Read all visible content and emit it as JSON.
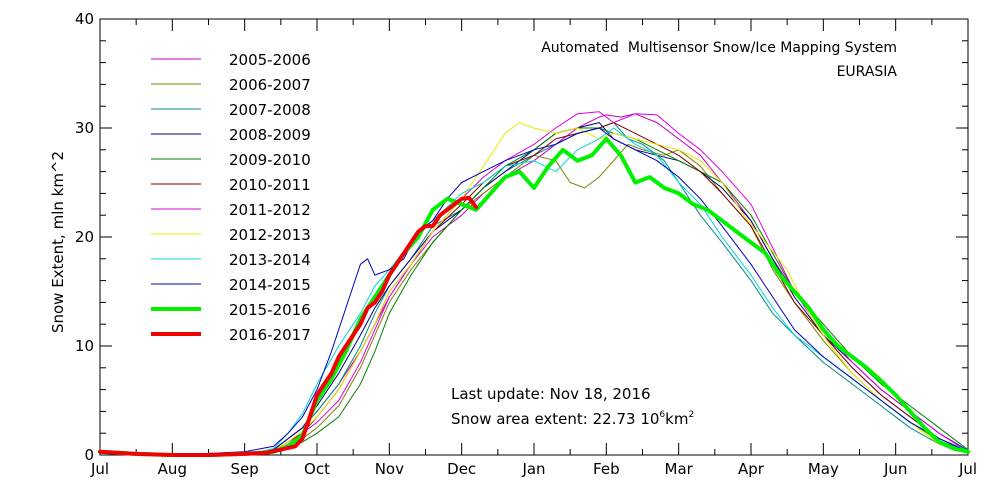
{
  "chart_data": {
    "type": "line",
    "title": "Automated  Multisensor Snow/Ice Mapping System",
    "subtitle": "EURASIA",
    "ylabel": "Snow Extent, mln km^2",
    "xlabel": "",
    "ylim": [
      0,
      40
    ],
    "xlim": [
      0,
      12
    ],
    "y_ticks": [
      "0",
      "10",
      "20",
      "30",
      "40"
    ],
    "x_ticks": [
      "Jul",
      "Aug",
      "Sep",
      "Oct",
      "Nov",
      "Dec",
      "Jan",
      "Feb",
      "Mar",
      "Apr",
      "May",
      "Jun",
      "Jul"
    ],
    "x_unit": "months since Jul 1",
    "grid": false,
    "legend_position": "top-left",
    "annotations": {
      "last_update": "Last update: Nov 18, 2016",
      "snow_area": "Snow area extent: 22.73 10",
      "snow_area_sup": "6",
      "snow_area_unit": "km",
      "snow_area_unit_sup": "2"
    },
    "series": [
      {
        "name": "2005-2006",
        "color": "#c000c0",
        "width": 1,
        "x": [
          0,
          1,
          2,
          2.4,
          2.6,
          2.8,
          3,
          3.3,
          3.6,
          3.8,
          4,
          4.3,
          4.6,
          5,
          5.3,
          5.6,
          6,
          6.3,
          6.6,
          6.9,
          7,
          7.2,
          7.4,
          7.7,
          8,
          8.3,
          8.6,
          9,
          9.3,
          9.6,
          10,
          10.4,
          10.8,
          11.2,
          11.6,
          12
        ],
        "y": [
          0.3,
          0,
          0,
          0.5,
          1.5,
          2.5,
          4,
          6.5,
          9.5,
          12,
          14.5,
          17.5,
          20,
          22,
          24,
          25.5,
          27,
          28.5,
          30,
          31,
          31.2,
          31,
          31.3,
          30.5,
          29,
          27.5,
          25,
          21.5,
          18,
          15,
          11,
          8,
          5.5,
          3.5,
          1.5,
          0.4
        ]
      },
      {
        "name": "2006-2007",
        "color": "#808000",
        "width": 1,
        "x": [
          0,
          1,
          2,
          2.4,
          2.6,
          2.8,
          3,
          3.3,
          3.6,
          3.8,
          4,
          4.3,
          4.6,
          5,
          5.3,
          5.6,
          6,
          6.3,
          6.5,
          6.7,
          6.9,
          7.1,
          7.3,
          7.5,
          7.8,
          8,
          8.3,
          8.6,
          9,
          9.3,
          9.6,
          10,
          10.4,
          10.8,
          11.2,
          11.6,
          12
        ],
        "y": [
          0.2,
          0,
          0,
          0.2,
          0.8,
          1.5,
          2.5,
          4.5,
          8,
          11,
          14,
          17,
          19.5,
          22.5,
          24,
          25.5,
          27.5,
          27,
          25,
          24.5,
          25.5,
          27,
          28.5,
          28,
          27.5,
          28,
          26.5,
          24,
          21,
          17,
          14,
          10.5,
          7.5,
          5,
          3,
          1.3,
          0.4
        ]
      },
      {
        "name": "2007-2008",
        "color": "#008b8b",
        "width": 1,
        "x": [
          0,
          1,
          2,
          2.4,
          2.6,
          2.8,
          3,
          3.3,
          3.6,
          3.8,
          4,
          4.3,
          4.6,
          5,
          5.3,
          5.6,
          6,
          6.3,
          6.6,
          6.9,
          7.1,
          7.3,
          7.5,
          7.8,
          8,
          8.3,
          8.6,
          9,
          9.3,
          9.6,
          10,
          10.4,
          10.8,
          11.2,
          11.6,
          12
        ],
        "y": [
          0.2,
          0,
          0,
          0.5,
          1.5,
          2.5,
          4,
          6.5,
          10,
          13,
          15.5,
          18,
          21,
          22.5,
          24.5,
          26,
          27.5,
          28.5,
          29.5,
          30,
          30.5,
          29,
          28.5,
          27,
          25,
          22,
          19.5,
          16,
          13,
          11,
          8.5,
          6.5,
          4.5,
          2.5,
          1,
          0.3
        ]
      },
      {
        "name": "2008-2009",
        "color": "#000080",
        "width": 1,
        "x": [
          0,
          1,
          2,
          2.4,
          2.6,
          2.8,
          3,
          3.3,
          3.6,
          3.8,
          4,
          4.3,
          4.6,
          5,
          5.3,
          5.6,
          6,
          6.3,
          6.6,
          6.9,
          7.1,
          7.4,
          7.7,
          8,
          8.3,
          8.6,
          9,
          9.3,
          9.6,
          10,
          10.4,
          10.8,
          11.2,
          11.6,
          12
        ],
        "y": [
          0.2,
          0,
          0,
          0.5,
          1.5,
          2.5,
          4.5,
          7.5,
          11,
          13.5,
          15.5,
          18,
          20.5,
          22.5,
          24.5,
          26,
          28,
          29.5,
          30,
          30.5,
          29,
          28,
          27.5,
          27,
          26,
          24.5,
          21.5,
          18,
          14.5,
          11,
          8.5,
          6,
          4,
          2,
          0.4
        ]
      },
      {
        "name": "2009-2010",
        "color": "#008000",
        "width": 1,
        "x": [
          0,
          1,
          2,
          2.4,
          2.6,
          2.8,
          3,
          3.3,
          3.6,
          3.8,
          4,
          4.3,
          4.6,
          5,
          5.3,
          5.6,
          6,
          6.3,
          6.6,
          6.9,
          7.1,
          7.4,
          7.7,
          8,
          8.3,
          8.6,
          9,
          9.3,
          9.6,
          10,
          10.4,
          10.8,
          11.2,
          11.6,
          12
        ],
        "y": [
          0.2,
          0,
          0,
          0.2,
          0.6,
          1.2,
          2,
          3.5,
          6.5,
          9.5,
          13,
          16.5,
          19.5,
          22.5,
          24.5,
          26.5,
          28,
          29.5,
          30,
          30,
          29.5,
          29,
          28,
          27,
          26,
          25,
          22,
          18.5,
          15,
          12,
          9,
          6.5,
          4.5,
          2.5,
          0.5
        ]
      },
      {
        "name": "2010-2011",
        "color": "#800000",
        "width": 1,
        "x": [
          0,
          1,
          2,
          2.4,
          2.6,
          2.8,
          3,
          3.3,
          3.6,
          3.8,
          4,
          4.3,
          4.6,
          5,
          5.3,
          5.6,
          6,
          6.3,
          6.6,
          6.9,
          7.1,
          7.4,
          7.7,
          8,
          8.3,
          8.6,
          9,
          9.3,
          9.6,
          10,
          10.4,
          10.8,
          11.2,
          11.6,
          12
        ],
        "y": [
          0.2,
          0,
          0,
          0.4,
          1.2,
          2,
          3.5,
          6,
          9.5,
          12,
          15,
          17.5,
          20.5,
          23,
          25,
          26.5,
          27.5,
          29,
          29.5,
          30,
          30.5,
          29.5,
          28.5,
          27.5,
          26,
          24,
          21,
          17.5,
          14,
          11,
          8,
          5.5,
          3.5,
          1.5,
          0.4
        ]
      },
      {
        "name": "2011-2012",
        "color": "#e000e0",
        "width": 1,
        "x": [
          0,
          1,
          2,
          2.4,
          2.6,
          2.8,
          3,
          3.3,
          3.6,
          3.8,
          4,
          4.3,
          4.6,
          5,
          5.3,
          5.6,
          6,
          6.3,
          6.6,
          6.9,
          7.1,
          7.4,
          7.7,
          8,
          8.3,
          8.6,
          9,
          9.3,
          9.6,
          10,
          10.4,
          10.8,
          11.2,
          11.6,
          12
        ],
        "y": [
          0.2,
          0,
          0,
          0.3,
          1,
          2,
          3,
          5,
          8.5,
          11.5,
          14.5,
          17.5,
          20.5,
          23.5,
          25.5,
          27,
          28.5,
          30,
          31.3,
          31.5,
          30.5,
          31.3,
          31.2,
          29.5,
          28,
          26,
          23,
          19,
          15,
          11.5,
          8.5,
          6,
          4,
          2,
          0.3
        ]
      },
      {
        "name": "2012-2013",
        "color": "#e8e800",
        "width": 1,
        "x": [
          0,
          1,
          2,
          2.4,
          2.6,
          2.8,
          3,
          3.3,
          3.6,
          3.8,
          4,
          4.3,
          4.6,
          5,
          5.3,
          5.6,
          5.8,
          6,
          6.3,
          6.6,
          6.9,
          7.1,
          7.4,
          7.7,
          8,
          8.3,
          8.6,
          8.9,
          9.2,
          9.5,
          9.8,
          10.1,
          10.4,
          10.8,
          11.2,
          11.6,
          12
        ],
        "y": [
          0.2,
          0,
          0,
          0.4,
          1.2,
          2.2,
          3.5,
          6,
          9.5,
          12,
          15,
          17.5,
          20.5,
          23.5,
          26.5,
          29.5,
          30.5,
          30,
          29.5,
          30,
          29,
          29.5,
          29,
          28.5,
          28,
          27,
          25,
          22,
          19.5,
          17,
          13,
          10,
          7.5,
          5,
          3,
          1,
          0.3
        ]
      },
      {
        "name": "2013-2014",
        "color": "#00d8d8",
        "width": 1,
        "x": [
          0,
          1,
          2,
          2.4,
          2.6,
          2.8,
          3,
          3.3,
          3.6,
          3.8,
          4,
          4.3,
          4.6,
          5,
          5.3,
          5.6,
          6,
          6.3,
          6.6,
          6.9,
          7.1,
          7.4,
          7.7,
          8,
          8.3,
          8.6,
          9,
          9.3,
          9.6,
          10,
          10.4,
          10.8,
          11.2,
          11.6,
          12
        ],
        "y": [
          0.2,
          0,
          0,
          0.6,
          2,
          3.8,
          6.5,
          10,
          13,
          15.5,
          17,
          19.5,
          21.5,
          24,
          25,
          26.5,
          27,
          26,
          28,
          29,
          30,
          28.5,
          27.5,
          25,
          23,
          20,
          16.5,
          13.5,
          11,
          9,
          7,
          5,
          3,
          1.5,
          0.4
        ]
      },
      {
        "name": "2014-2015",
        "color": "#0000c0",
        "width": 1,
        "x": [
          0,
          1,
          2,
          2.4,
          2.6,
          2.8,
          3,
          3.2,
          3.4,
          3.5,
          3.6,
          3.7,
          3.8,
          4,
          4.2,
          4.4,
          4.6,
          4.8,
          5,
          5.3,
          5.6,
          6,
          6.3,
          6.6,
          6.9,
          7.1,
          7.4,
          7.7,
          8,
          8.3,
          8.6,
          9,
          9.3,
          9.6,
          10,
          10.4,
          10.8,
          11.2,
          11.6,
          12
        ],
        "y": [
          0.2,
          0,
          0.3,
          0.8,
          2,
          3.5,
          6,
          9.5,
          13.5,
          15.5,
          17.5,
          18,
          16.5,
          17,
          18,
          20.5,
          21.5,
          23.5,
          25,
          26,
          27,
          28,
          28.5,
          29.5,
          30,
          29,
          28,
          27,
          25.5,
          23.5,
          21,
          17.5,
          14.5,
          11.5,
          9,
          7,
          5,
          3,
          1.5,
          0.3
        ]
      },
      {
        "name": "2015-2016",
        "color": "#00f000",
        "width": 4,
        "x": [
          0,
          0.5,
          1,
          1.5,
          2,
          2.4,
          2.6,
          2.8,
          3,
          3.2,
          3.4,
          3.6,
          3.8,
          4,
          4.2,
          4.4,
          4.6,
          4.8,
          5,
          5.2,
          5.4,
          5.6,
          5.8,
          6,
          6.2,
          6.4,
          6.6,
          6.8,
          7,
          7.2,
          7.4,
          7.6,
          7.8,
          8,
          8.2,
          8.4,
          8.6,
          8.8,
          9,
          9.2,
          9.4,
          9.6,
          9.8,
          10,
          10.2,
          10.4,
          10.6,
          10.8,
          11,
          11.2,
          11.4,
          11.6,
          11.8,
          12
        ],
        "y": [
          0.3,
          0.1,
          0,
          0,
          0.1,
          0.3,
          0.8,
          1.8,
          5,
          7,
          9.5,
          12.5,
          14.5,
          16.5,
          18.5,
          20,
          22.5,
          23.5,
          23,
          22.5,
          24,
          25.5,
          26,
          24.5,
          26.5,
          28,
          27,
          27.5,
          29,
          27.5,
          25,
          25.5,
          24.5,
          24,
          23,
          22.5,
          21.5,
          20.5,
          19.5,
          18.5,
          16.5,
          15,
          13.5,
          11.5,
          10,
          9,
          8,
          6.8,
          5.5,
          4,
          2.5,
          1.2,
          0.6,
          0.3
        ]
      },
      {
        "name": "2016-2017",
        "color": "#f00000",
        "width": 4,
        "x": [
          0,
          0.5,
          1,
          1.5,
          2,
          2.3,
          2.5,
          2.7,
          2.8,
          2.9,
          3,
          3.1,
          3.2,
          3.3,
          3.4,
          3.5,
          3.6,
          3.7,
          3.8,
          3.9,
          4,
          4.1,
          4.2,
          4.3,
          4.4,
          4.5,
          4.6,
          4.7,
          4.8,
          4.9,
          5,
          5.1,
          5.2
        ],
        "y": [
          0.3,
          0.1,
          0,
          0,
          0.1,
          0.2,
          0.5,
          0.8,
          1.5,
          3.5,
          5.5,
          6.5,
          7.5,
          9,
          10,
          11,
          12,
          13.5,
          14,
          15,
          16.5,
          17.5,
          18.5,
          19.5,
          20.5,
          21,
          21,
          22,
          22.5,
          23,
          23.5,
          23.6,
          22.73
        ]
      }
    ]
  }
}
